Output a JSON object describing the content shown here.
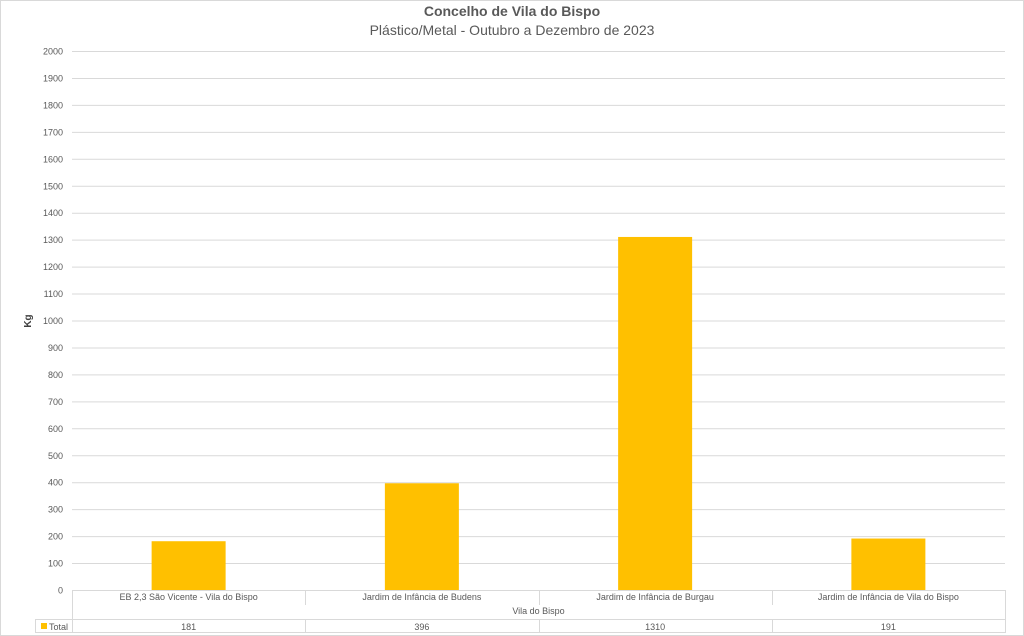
{
  "chart_data": {
    "type": "bar",
    "title": "Concelho de Vila do Bispo",
    "subtitle": "Plástico/Metal - Outubro a Dezembro de 2023",
    "ylabel": "Kg",
    "xgroup_label": "Vila do Bispo",
    "categories": [
      "EB 2,3 São Vicente - Vila do Bispo",
      "Jardim de Infância de Budens",
      "Jardim de Infância de Burgau",
      "Jardim de Infância de Vila do Bispo"
    ],
    "series": [
      {
        "name": "Total",
        "values": [
          181,
          396,
          1310,
          191
        ],
        "color": "#FFC000"
      }
    ],
    "ylim": [
      0,
      2000
    ],
    "yticks": [
      0,
      100,
      200,
      300,
      400,
      500,
      600,
      700,
      800,
      900,
      1000,
      1100,
      1200,
      1300,
      1400,
      1500,
      1600,
      1700,
      1800,
      1900,
      2000
    ],
    "grid": true,
    "legend": "data-table"
  }
}
